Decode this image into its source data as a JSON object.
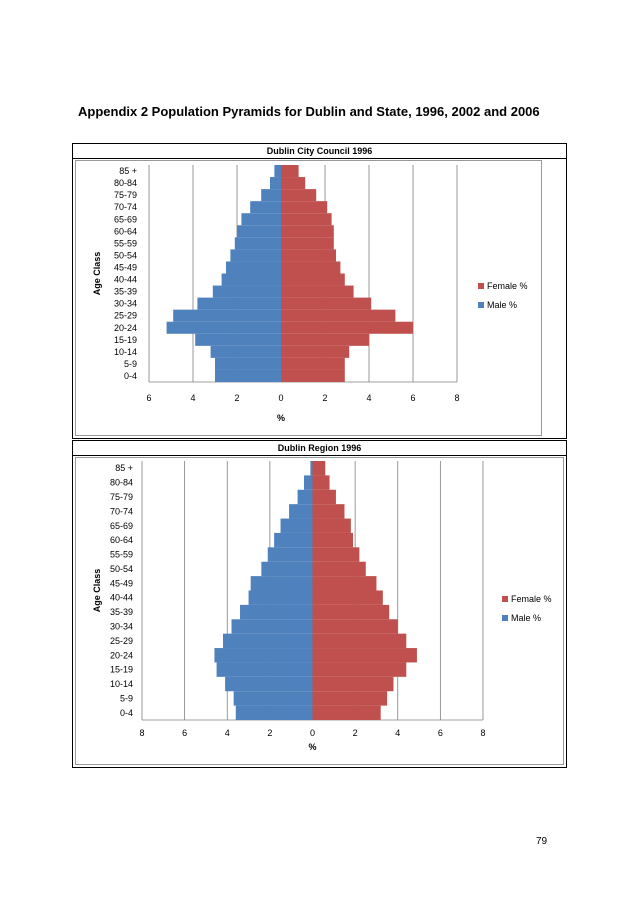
{
  "page": {
    "heading": "Appendix 2  Population Pyramids for Dublin and State, 1996, 2002 and 2006",
    "page_number": "79"
  },
  "colors": {
    "female": "#c0504d",
    "male": "#4f81bd",
    "grid": "#808080"
  },
  "chart_data": [
    {
      "type": "bar",
      "orientation": "horizontal-pyramid",
      "title": "Dublin City Council 1996",
      "xlabel": "%",
      "ylabel": "Age Class",
      "categories": [
        "0-4",
        "5-9",
        "10-14",
        "15-19",
        "20-24",
        "25-29",
        "30-34",
        "35-39",
        "40-44",
        "45-49",
        "50-54",
        "55-59",
        "60-64",
        "65-69",
        "70-74",
        "75-79",
        "80-84",
        "85 +"
      ],
      "series": [
        {
          "name": "Female %",
          "values": [
            2.9,
            2.9,
            3.1,
            4.0,
            6.0,
            5.2,
            4.1,
            3.3,
            2.9,
            2.7,
            2.5,
            2.4,
            2.4,
            2.3,
            2.1,
            1.6,
            1.1,
            0.8
          ]
        },
        {
          "name": "Male %",
          "values": [
            3.0,
            3.0,
            3.2,
            3.9,
            5.2,
            4.9,
            3.8,
            3.1,
            2.7,
            2.5,
            2.3,
            2.1,
            2.0,
            1.8,
            1.4,
            0.9,
            0.5,
            0.3
          ]
        }
      ],
      "xticks": [
        "6",
        "4",
        "2",
        "0",
        "2",
        "4",
        "6",
        "8"
      ],
      "xlim": [
        -6,
        8
      ],
      "grid": true,
      "legend_position": "right"
    },
    {
      "type": "bar",
      "orientation": "horizontal-pyramid",
      "title": "Dublin Region 1996",
      "xlabel": "%",
      "ylabel": "Age Class",
      "categories": [
        "0-4",
        "5-9",
        "10-14",
        "15-19",
        "20-24",
        "25-29",
        "30-34",
        "35-39",
        "40-44",
        "45-49",
        "50-54",
        "55-59",
        "60-64",
        "65-69",
        "70-74",
        "75-79",
        "80-84",
        "85 +"
      ],
      "series": [
        {
          "name": "Female %",
          "values": [
            3.2,
            3.5,
            3.8,
            4.4,
            4.9,
            4.4,
            4.0,
            3.6,
            3.3,
            3.0,
            2.5,
            2.2,
            1.9,
            1.8,
            1.5,
            1.1,
            0.8,
            0.6
          ]
        },
        {
          "name": "Male %",
          "values": [
            3.6,
            3.7,
            4.1,
            4.5,
            4.6,
            4.2,
            3.8,
            3.4,
            3.0,
            2.9,
            2.4,
            2.1,
            1.8,
            1.5,
            1.1,
            0.7,
            0.4,
            0.1
          ]
        }
      ],
      "xticks": [
        "8",
        "6",
        "4",
        "2",
        "0",
        "2",
        "4",
        "6",
        "8"
      ],
      "xlim": [
        -8,
        8
      ],
      "grid": true,
      "legend_position": "right"
    }
  ]
}
